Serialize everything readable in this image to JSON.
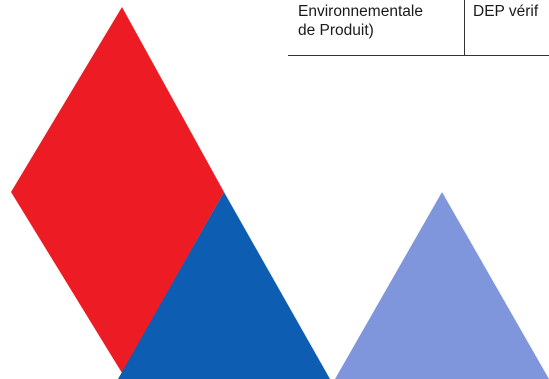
{
  "table": {
    "cell_left_line1": "Environnementale",
    "cell_left_line2": "de Produit)",
    "cell_right": "DEP vérif"
  },
  "colors": {
    "logo_red": "#ED1C24",
    "logo_dark_blue": "#0D5EB3",
    "logo_light_blue": "#8096DC",
    "rule": "#333333"
  }
}
